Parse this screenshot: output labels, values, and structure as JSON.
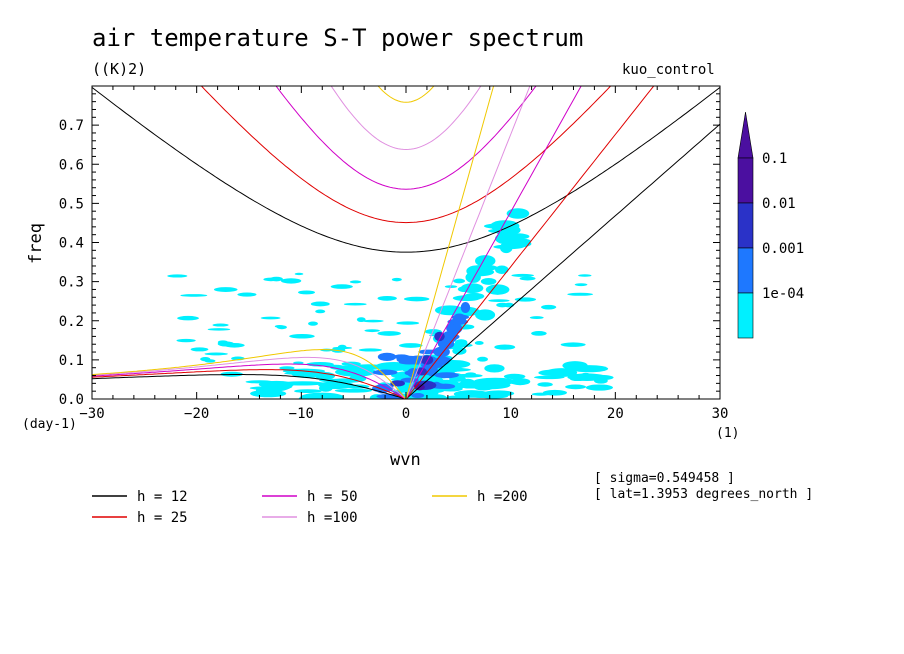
{
  "chart_data": {
    "type": "heatmap",
    "title": "air temperature S-T power spectrum",
    "units": "((K)2)",
    "run_label": "kuo_control",
    "xlabel": "wvn",
    "ylabel": "freq",
    "x_unit": "(1)",
    "y_unit": "(day-1)",
    "xlim": [
      -30,
      30
    ],
    "ylim": [
      0,
      0.8
    ],
    "x_ticks": [
      -30,
      -20,
      -10,
      0,
      10,
      20,
      30
    ],
    "y_ticks": [
      0.0,
      0.1,
      0.2,
      0.3,
      0.4,
      0.5,
      0.6,
      0.7
    ],
    "colorbar": {
      "levels": [
        "0.1",
        "0.01",
        "0.001",
        "1e-04"
      ],
      "colors": [
        "#4b0fa0",
        "#2a32c8",
        "#1e78ff",
        "#00f0ff"
      ]
    },
    "dispersion_curves": [
      {
        "label": "h = 12",
        "h": 12,
        "color": "#000000"
      },
      {
        "label": "h = 25",
        "h": 25,
        "color": "#e00000"
      },
      {
        "label": "h = 50",
        "h": 50,
        "color": "#d000c8"
      },
      {
        "label": "h =100",
        "h": 100,
        "color": "#e090e0"
      },
      {
        "label": "h =200",
        "h": 200,
        "color": "#f0c800"
      }
    ],
    "annotations": [
      "[ sigma=0.549458 ]",
      "[ lat=1.3953 degrees_north ]"
    ]
  }
}
